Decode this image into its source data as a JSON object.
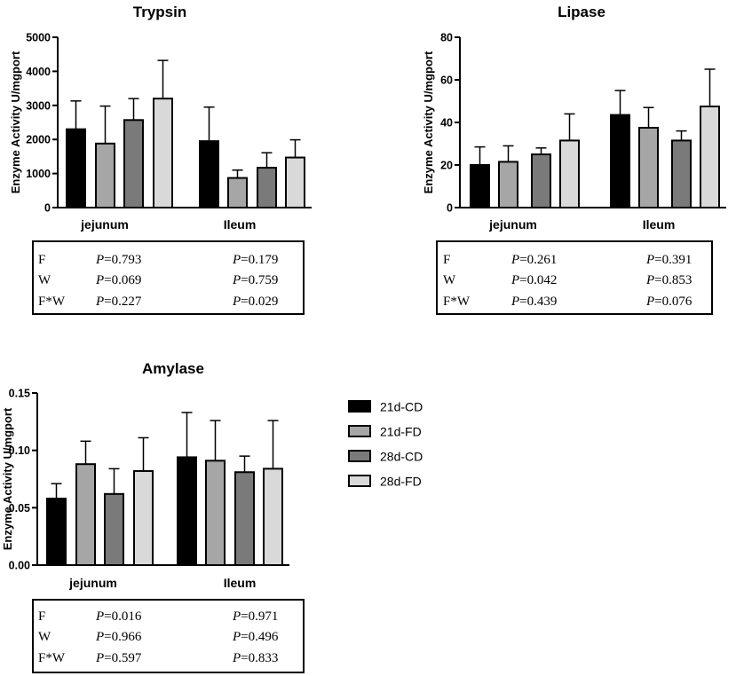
{
  "chart_data": [
    {
      "type": "bar",
      "title": "Trypsin",
      "ylabel": "Enzyme Activity U/mgport",
      "ylim": [
        0,
        5000
      ],
      "yticks": [
        0,
        1000,
        2000,
        3000,
        4000,
        5000
      ],
      "ytick_labels": [
        "0",
        "1000",
        "2000",
        "3000",
        "4000",
        "5000"
      ],
      "categories": [
        "jejunum",
        "Ileum"
      ],
      "series": [
        {
          "name": "21d-CD",
          "values": [
            2300,
            1950
          ],
          "errors": [
            830,
            1000
          ]
        },
        {
          "name": "21d-FD",
          "values": [
            1880,
            870
          ],
          "errors": [
            1100,
            230
          ]
        },
        {
          "name": "28d-CD",
          "values": [
            2570,
            1170
          ],
          "errors": [
            630,
            440
          ]
        },
        {
          "name": "28d-FD",
          "values": [
            3200,
            1470
          ],
          "errors": [
            1120,
            520
          ]
        }
      ],
      "stats": [
        {
          "label": "F",
          "values": [
            "=0.793",
            "=0.179"
          ]
        },
        {
          "label": "W",
          "values": [
            "=0.069",
            "=0.759"
          ]
        },
        {
          "label": "F*W",
          "values": [
            "=0.227",
            "=0.029"
          ]
        }
      ]
    },
    {
      "type": "bar",
      "title": "Lipase",
      "ylabel": "Enzyme Activity U/mgport",
      "ylim": [
        0,
        80
      ],
      "yticks": [
        0,
        20,
        40,
        60,
        80
      ],
      "ytick_labels": [
        "0",
        "20",
        "40",
        "60",
        "80"
      ],
      "categories": [
        "jejunum",
        "Ileum"
      ],
      "series": [
        {
          "name": "21d-CD",
          "values": [
            20,
            43.5
          ],
          "errors": [
            8.5,
            11.5
          ]
        },
        {
          "name": "21d-FD",
          "values": [
            21.5,
            37.5
          ],
          "errors": [
            7.5,
            9.5
          ]
        },
        {
          "name": "28d-CD",
          "values": [
            25,
            31.5
          ],
          "errors": [
            3,
            4.5
          ]
        },
        {
          "name": "28d-FD",
          "values": [
            31.5,
            47.5
          ],
          "errors": [
            12.5,
            17.5
          ]
        }
      ],
      "stats": [
        {
          "label": "F",
          "values": [
            "=0.261",
            "=0.391"
          ]
        },
        {
          "label": "W",
          "values": [
            "=0.042",
            "=0.853"
          ]
        },
        {
          "label": "F*W",
          "values": [
            "=0.439",
            "=0.076"
          ]
        }
      ]
    },
    {
      "type": "bar",
      "title": "Amylase",
      "ylabel": "Enzyme Activity U/mgport",
      "ylim": [
        0,
        0.15
      ],
      "yticks": [
        0,
        0.05,
        0.1,
        0.15
      ],
      "ytick_labels": [
        "0.00",
        "0.05",
        "0.10",
        "0.15"
      ],
      "categories": [
        "jejunum",
        "Ileum"
      ],
      "series": [
        {
          "name": "21d-CD",
          "values": [
            0.058,
            0.094
          ],
          "errors": [
            0.013,
            0.039
          ]
        },
        {
          "name": "21d-FD",
          "values": [
            0.088,
            0.091
          ],
          "errors": [
            0.02,
            0.035
          ]
        },
        {
          "name": "28d-CD",
          "values": [
            0.062,
            0.081
          ],
          "errors": [
            0.022,
            0.014
          ]
        },
        {
          "name": "28d-FD",
          "values": [
            0.082,
            0.084
          ],
          "errors": [
            0.029,
            0.042
          ]
        }
      ],
      "stats": [
        {
          "label": "F",
          "values": [
            "=0.016",
            "=0.971"
          ]
        },
        {
          "label": "W",
          "values": [
            "=0.966",
            "=0.496"
          ]
        },
        {
          "label": "F*W",
          "values": [
            "=0.597",
            "=0.833"
          ]
        }
      ]
    }
  ],
  "stat_prefix": "P",
  "legend": [
    {
      "label": "21d-CD",
      "color": "#000000"
    },
    {
      "label": "21d-FD",
      "color": "#a6a6a6"
    },
    {
      "label": "28d-CD",
      "color": "#7a7a7a"
    },
    {
      "label": "28d-FD",
      "color": "#d9d9d9"
    }
  ]
}
